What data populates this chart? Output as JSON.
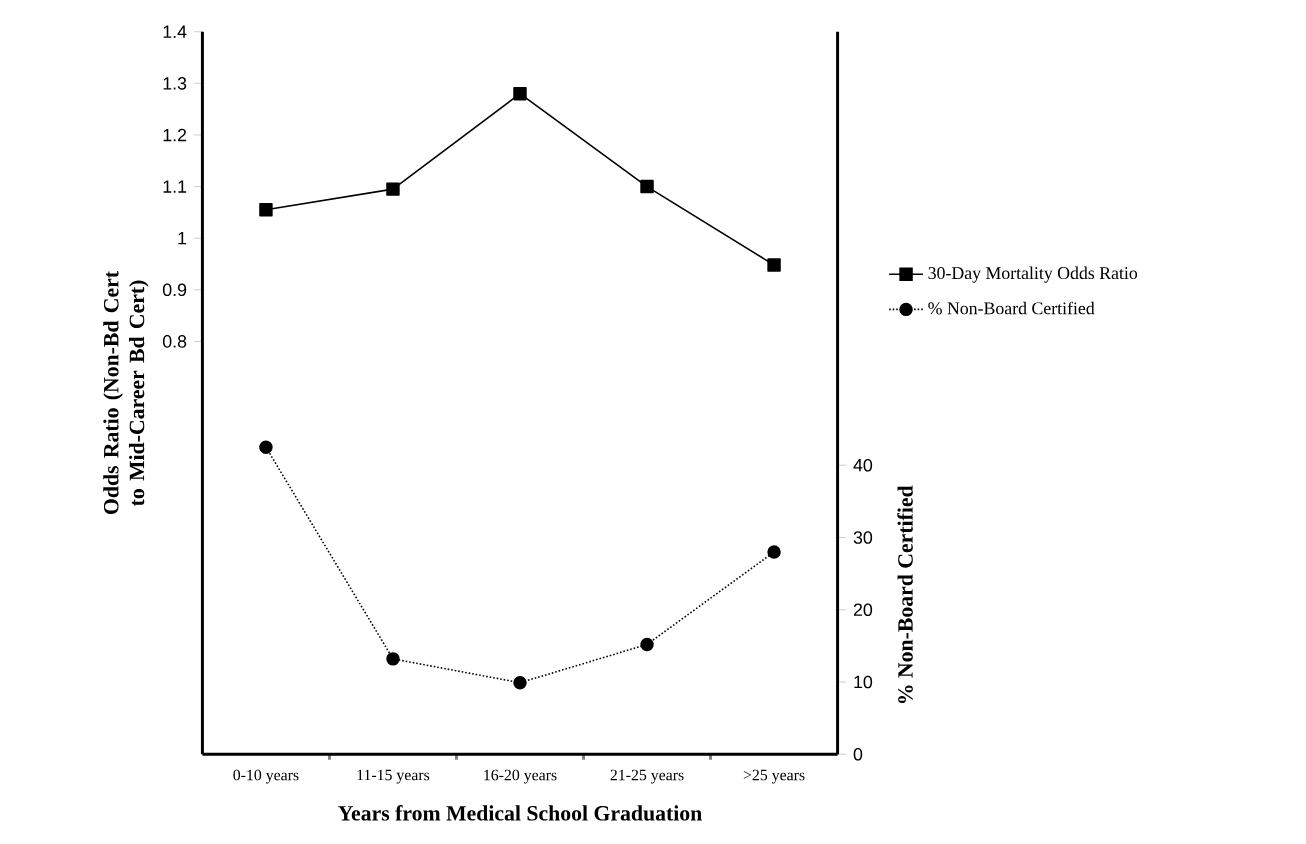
{
  "chart_data": {
    "type": "line",
    "xlabel": "Years from Medical School Graduation",
    "ylabel": "Odds Ratio (Non-Bd Cert to Mid-Career Bd Cert)",
    "y2label": "% Non-Board Certified",
    "categories": [
      "0-10 years",
      "11-15 years",
      "16-20 years",
      "21-25 years",
      ">25 years"
    ],
    "ylim": [
      0,
      1.4
    ],
    "yticks": [
      0.8,
      0.9,
      1,
      1.1,
      1.2,
      1.3,
      1.4
    ],
    "y2lim": [
      0,
      100
    ],
    "y2ticks": [
      0,
      10,
      20,
      30,
      40
    ],
    "legend": "right",
    "grid": false,
    "series": [
      {
        "name": "30-Day Mortality Odds Ratio",
        "color": "#000000",
        "marker": "square",
        "line_style": "solid",
        "values": [
          1.055,
          1.095,
          1.28,
          1.1,
          0.948
        ]
      },
      {
        "name": "% Non-Board Certified",
        "color": "#000000",
        "marker": "circle",
        "line_style": "dotted",
        "axis": "y2",
        "values": [
          42.5,
          13.2,
          9.9,
          15.2,
          28
        ]
      }
    ]
  }
}
